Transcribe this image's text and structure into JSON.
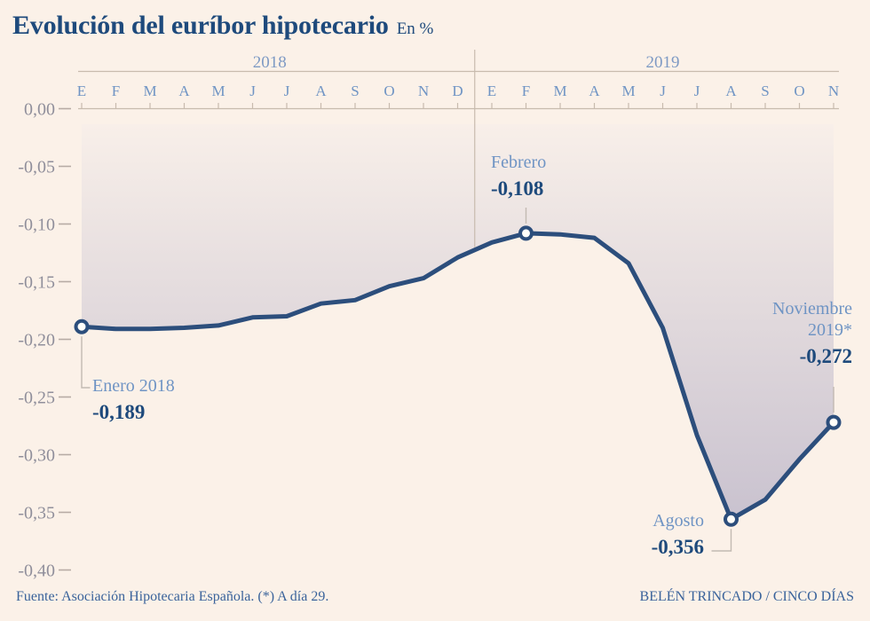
{
  "header": {
    "title": "Evolución del euríbor hipotecario",
    "subtitle": "En %"
  },
  "footer": {
    "source": "Fuente: Asociación Hipotecaria Española. (*) A día 29.",
    "credit": "BELÉN TRINCADO / CINCO DÍAS"
  },
  "chart_data": {
    "type": "line",
    "title": "Evolución del euríbor hipotecario",
    "unit_label": "En %",
    "x_groups": [
      {
        "year": "2018",
        "months": [
          "E",
          "F",
          "M",
          "A",
          "M",
          "J",
          "J",
          "A",
          "S",
          "O",
          "N",
          "D"
        ]
      },
      {
        "year": "2019",
        "months": [
          "E",
          "F",
          "M",
          "A",
          "M",
          "J",
          "J",
          "A",
          "S",
          "O",
          "N"
        ]
      }
    ],
    "series": [
      {
        "name": "Euríbor hipotecario",
        "values": [
          -0.189,
          -0.191,
          -0.191,
          -0.19,
          -0.188,
          -0.181,
          -0.18,
          -0.169,
          -0.166,
          -0.154,
          -0.147,
          -0.129,
          -0.116,
          -0.108,
          -0.109,
          -0.112,
          -0.134,
          -0.19,
          -0.283,
          -0.356,
          -0.339,
          -0.304,
          -0.272
        ]
      }
    ],
    "y_ticks": [
      "0,00",
      "-0,05",
      "-0,10",
      "-0,15",
      "-0,20",
      "-0,25",
      "-0,30",
      "-0,35",
      "-0,40"
    ],
    "ylim": [
      -0.4,
      0
    ],
    "grid": false,
    "legend": "none",
    "annotations": [
      {
        "id": "enero",
        "label": "Enero 2018",
        "label2": "",
        "value": "-0,189",
        "month_index": 0
      },
      {
        "id": "febrero",
        "label": "Febrero",
        "label2": "",
        "value": "-0,108",
        "month_index": 13
      },
      {
        "id": "agosto",
        "label": "Agosto",
        "label2": "",
        "value": "-0,356",
        "month_index": 19
      },
      {
        "id": "noviembre",
        "label": "Noviembre",
        "label2": "2019*",
        "value": "-0,272",
        "month_index": 22
      }
    ],
    "colors": {
      "background": "#fbf1e8",
      "line": "#2c4e7c",
      "marker_fill": "#fffef9",
      "area_top": "#f8efe9",
      "area_bottom": "#c9c2cf",
      "month_label": "#6f94c4",
      "year_label": "#7e9ac4",
      "y_label": "#908f9b",
      "axis": "#c8bbae",
      "leader": "#c2bab2",
      "annotation_label": "#6f94c4",
      "annotation_value": "#1e4a7c",
      "title": "#1e4a7c",
      "footer": "#3a639b"
    }
  }
}
